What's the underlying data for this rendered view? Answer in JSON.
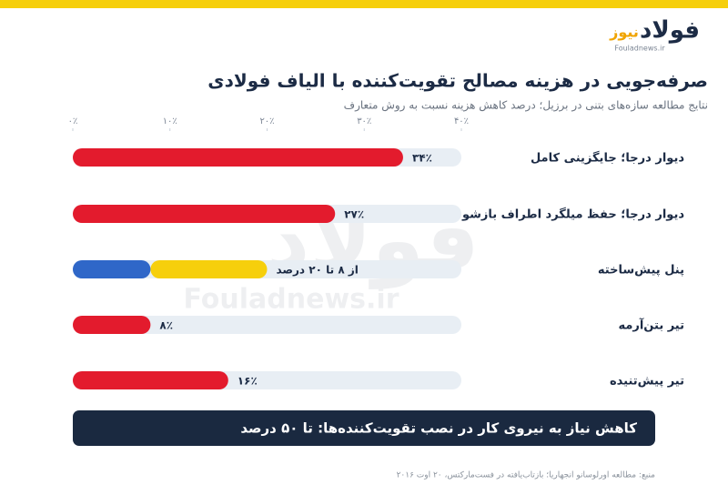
{
  "logo": {
    "name_a": "فولاد",
    "name_b": "نیوز",
    "domain": "Fouladnews.ir"
  },
  "chart_data": {
    "type": "bar",
    "orientation": "horizontal",
    "title": "صرفه‌جویی در هزینه مصالح تقویت‌کننده با الیاف فولادی",
    "subtitle": "نتایج مطالعه سازه‌های بتنی در برزیل؛ درصد کاهش هزینه نسبت به روش متعارف",
    "categories": [
      "دیوار درجا؛ جایگزینی کامل",
      "دیوار درجا؛ حفظ میلگرد اطراف بازشو",
      "پنل پیش‌ساخته",
      "تیر بتن‌آرمه",
      "تیر پیش‌تنیده"
    ],
    "values": [
      34,
      27,
      [
        8,
        20
      ],
      8,
      16
    ],
    "value_labels": [
      "۳۴٪",
      "۲۷٪",
      "از ۸ تا ۲۰ درصد",
      "۸٪",
      "۱۶٪"
    ],
    "color": "#e31b2d",
    "range_colors": [
      "#2f67c8",
      "#f6cf0c"
    ],
    "track_color": "#e8eef4",
    "xlim": [
      0,
      40
    ],
    "xticks": [
      {
        "value": 0,
        "label": "۰٪"
      },
      {
        "value": 10,
        "label": "۱۰٪"
      },
      {
        "value": 20,
        "label": "۲۰٪"
      },
      {
        "value": 30,
        "label": "۳۰٪"
      },
      {
        "value": 40,
        "label": "۴۰٪"
      }
    ],
    "annotation": "کاهش نیاز به نیروی کار در نصب تقویت‌کننده‌ها: تا ۵۰ درصد",
    "source": "منبع: مطالعه اورلوسانو انجهاریا؛ بازتاب‌یافته در فست‌مارکتس، ۲۰ اوت ۲۰۱۶"
  }
}
